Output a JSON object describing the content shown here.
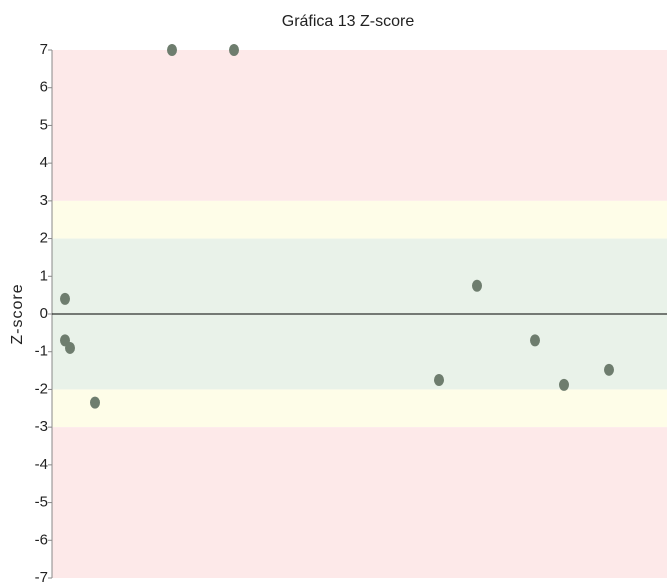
{
  "chart_data": {
    "type": "scatter",
    "title": "Gráfica 13 Z-score",
    "y_label": "Z-score",
    "x": [
      13,
      13,
      18,
      43,
      120,
      182,
      387,
      425,
      483,
      512,
      557
    ],
    "series": [
      {
        "name": "Z-score",
        "color": "#6e7d6e",
        "values": [
          0.4,
          -0.7,
          -0.9,
          -2.35,
          7,
          7,
          -1.75,
          0.75,
          -0.7,
          -1.88,
          -1.48
        ]
      }
    ],
    "xlim": [
      0,
      615
    ],
    "ylim": [
      -7,
      7
    ],
    "yticks": [
      -7,
      -6,
      -5,
      -4,
      -3,
      -2,
      -1,
      0,
      1,
      2,
      3,
      4,
      5,
      6,
      7
    ],
    "bands": [
      {
        "from": 3,
        "to": 7,
        "color": "#fde9e9"
      },
      {
        "from": 2,
        "to": 3,
        "color": "#fefde8"
      },
      {
        "from": -2,
        "to": 2,
        "color": "#e9f2e9"
      },
      {
        "from": -3,
        "to": -2,
        "color": "#fefde8"
      },
      {
        "from": -7,
        "to": -3,
        "color": "#fde9e9"
      }
    ],
    "zero_line": 0
  }
}
